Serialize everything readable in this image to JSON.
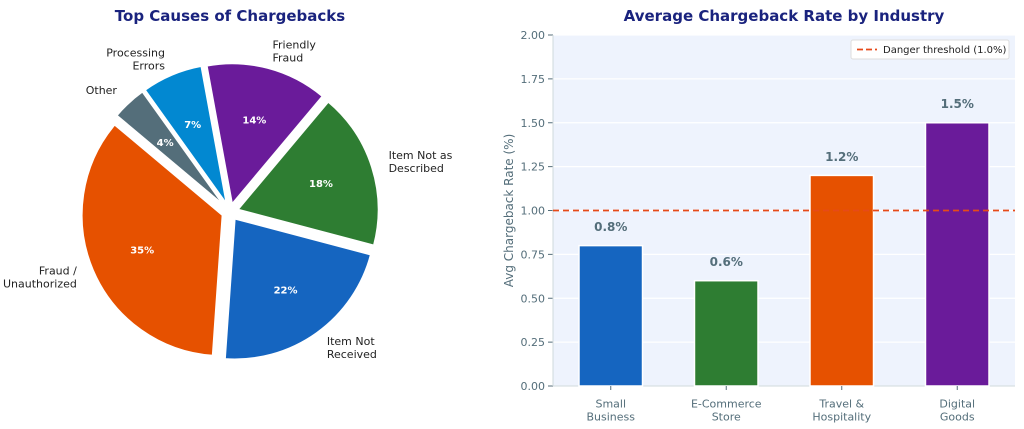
{
  "chart_data": [
    {
      "type": "pie",
      "title": "Top Causes of Chargebacks",
      "labels": [
        "Fraud /\nUnauthorized",
        "Item Not\nReceived",
        "Item Not as\nDescribed",
        "Friendly\nFraud",
        "Processing\nErrors",
        "Other"
      ],
      "values": [
        35,
        22,
        18,
        14,
        7,
        4
      ],
      "value_labels": [
        "35%",
        "22%",
        "18%",
        "14%",
        "7%",
        "4%"
      ],
      "colors": [
        "#E65100",
        "#1565C0",
        "#2E7D32",
        "#6A1B9A",
        "#0288D1",
        "#546E7A"
      ],
      "start_angle_deg": 140,
      "exploded": true
    },
    {
      "type": "bar",
      "title": "Average Chargeback Rate by Industry",
      "categories": [
        "Small\nBusiness",
        "E-Commerce\nStore",
        "Travel &\nHospitality",
        "Digital\nGoods"
      ],
      "values": [
        0.8,
        0.6,
        1.2,
        1.5
      ],
      "value_labels": [
        "0.8%",
        "0.6%",
        "1.2%",
        "1.5%"
      ],
      "colors": [
        "#1565C0",
        "#2E7D32",
        "#E65100",
        "#6A1B9A"
      ],
      "xlabel": "",
      "ylabel": "Avg Chargeback Rate (%)",
      "ylim": [
        0,
        2.0
      ],
      "yticks": [
        0,
        0.25,
        0.5,
        0.75,
        1.0,
        1.25,
        1.5,
        1.75,
        2.0
      ],
      "ytick_labels": [
        "0.00",
        "0.25",
        "0.50",
        "0.75",
        "1.00",
        "1.25",
        "1.50",
        "1.75",
        "2.00"
      ],
      "threshold": {
        "value": 1.0,
        "label": "Danger threshold (1.0%)",
        "color": "#E64A19",
        "style": "dashed"
      },
      "legend": "top-right",
      "grid": "horizontal",
      "background": "#EEF3FD",
      "title_color": "#1A237E",
      "axis_text_color": "#546E7A"
    }
  ]
}
